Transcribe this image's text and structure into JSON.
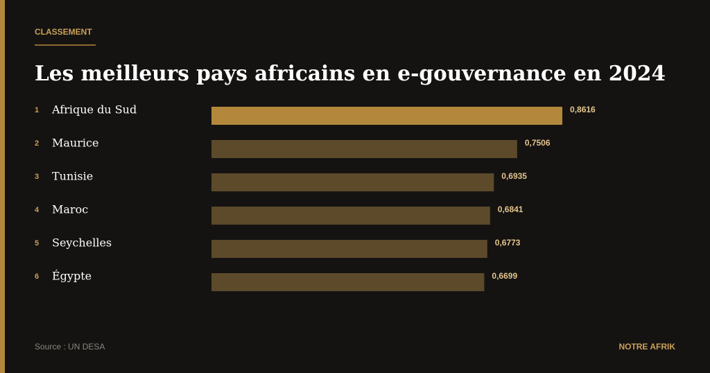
{
  "chart_data": {
    "type": "bar",
    "orientation": "horizontal",
    "kicker": "CLASSEMENT",
    "title": "Les meilleurs pays africains en e-gouvernance en 2024",
    "ranks": [
      1,
      2,
      3,
      4,
      5,
      6
    ],
    "categories": [
      "Afrique du Sud",
      "Maurice",
      "Tunisie",
      "Maroc",
      "Seychelles",
      "Égypte"
    ],
    "values": [
      0.8616,
      0.7506,
      0.6935,
      0.6841,
      0.6773,
      0.6699
    ],
    "value_labels": [
      "0,8616",
      "0,7506",
      "0,6935",
      "0,6841",
      "0,6773",
      "0,6699"
    ],
    "colors": [
      "#b3883c",
      "#5c4a2b",
      "#5c4a2b",
      "#5c4a2b",
      "#5c4a2b",
      "#5c4a2b"
    ],
    "source": "Source : UN DESA",
    "brand": "NOTRE AFRIK"
  }
}
